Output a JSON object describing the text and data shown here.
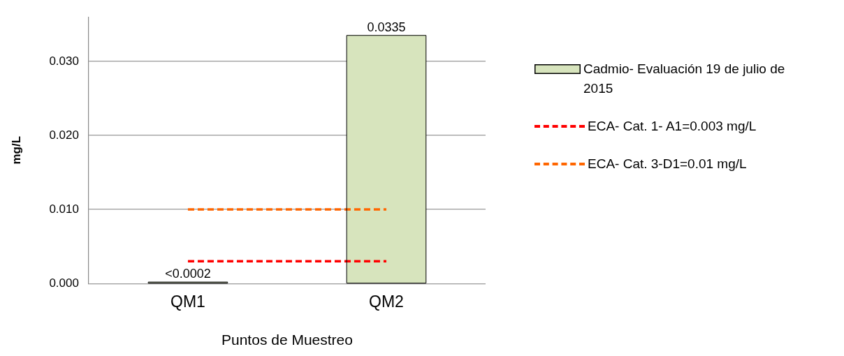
{
  "chart_data": {
    "type": "bar",
    "xlabel": "Puntos de Muestreo",
    "ylabel": "mg/L",
    "categories": [
      "QM1",
      "QM2"
    ],
    "series": [
      {
        "name": "Cadmio- Evaluación 19 de julio de 2015",
        "color": "#d7e4bd",
        "values": [
          0.0002,
          0.0335
        ],
        "value_labels": [
          "<0.0002",
          "0.0335"
        ]
      },
      {
        "name": "ECA- Cat. 1- A1=0.003 mg/L",
        "type": "line",
        "color": "#ff0000",
        "values": [
          0.003,
          0.003
        ],
        "line_style": "dashed",
        "marker": "none"
      },
      {
        "name": "ECA- Cat. 3-D1=0.01 mg/L",
        "type": "line",
        "color": "#ff6600",
        "values": [
          0.01,
          0.01
        ],
        "line_style": "dashed",
        "marker": "none"
      }
    ],
    "ylim": [
      0,
      0.036
    ],
    "yticks": [
      {
        "value": 0,
        "label": "0.000"
      },
      {
        "value": 0.01,
        "label": "0.010"
      },
      {
        "value": 0.02,
        "label": "0.020"
      },
      {
        "value": 0.03,
        "label": "0.030"
      }
    ],
    "grid": "y",
    "legend": "right"
  }
}
